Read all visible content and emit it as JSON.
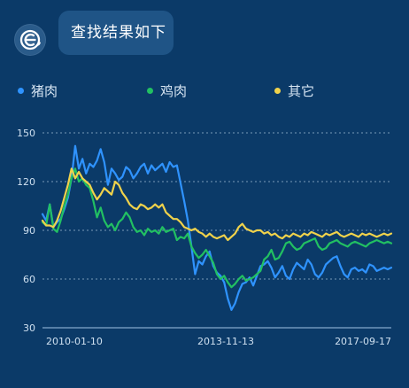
{
  "message": {
    "bubble_text": "查找结果如下",
    "avatar_icon": "bot-headset-icon"
  },
  "legend": [
    {
      "label": "猪肉",
      "color": "#2f93ff"
    },
    {
      "label": "鸡肉",
      "color": "#22c062"
    },
    {
      "label": "其它",
      "color": "#f0d24b"
    }
  ],
  "chart_data": {
    "type": "line",
    "x_tick_labels": [
      "2010-01-10",
      "2013-11-13",
      "2017-09-17"
    ],
    "y_ticks": [
      30,
      60,
      90,
      120,
      150
    ],
    "ylim": [
      30,
      150
    ],
    "grid": "horizontal-dotted",
    "legend_position": "top",
    "x": [
      0,
      1,
      2,
      3,
      4,
      5,
      6,
      7,
      8,
      9,
      10,
      11,
      12,
      13,
      14,
      15,
      16,
      17,
      18,
      19,
      20,
      21,
      22,
      23,
      24,
      25,
      26,
      27,
      28,
      29,
      30,
      31,
      32,
      33,
      34,
      35,
      36,
      37,
      38,
      39,
      40,
      41,
      42,
      43,
      44,
      45,
      46,
      47,
      48,
      49,
      50,
      51,
      52,
      53,
      54,
      55,
      56,
      57,
      58,
      59,
      60,
      61,
      62,
      63,
      64,
      65,
      66,
      67,
      68,
      69,
      70,
      71,
      72,
      73,
      74,
      75,
      76,
      77,
      78,
      79,
      80,
      81,
      82,
      83,
      84,
      85,
      86,
      87,
      88,
      89,
      90,
      91,
      92,
      93,
      94,
      95,
      96
    ],
    "series": [
      {
        "name": "猪肉",
        "color": "#2f93ff",
        "values": [
          100,
          96,
          106,
          92,
          95,
          97,
          103,
          110,
          122,
          142,
          128,
          134,
          125,
          131,
          129,
          133,
          140,
          132,
          118,
          128,
          125,
          121,
          123,
          129,
          127,
          122,
          125,
          129,
          131,
          125,
          130,
          127,
          129,
          131,
          126,
          132,
          129,
          130,
          119,
          108,
          96,
          80,
          63,
          71,
          69,
          74,
          77,
          68,
          64,
          62,
          58,
          48,
          41,
          45,
          52,
          57,
          58,
          61,
          56,
          62,
          68,
          69,
          71,
          67,
          61,
          64,
          68,
          62,
          60,
          66,
          70,
          68,
          66,
          72,
          69,
          63,
          61,
          64,
          69,
          71,
          73,
          74,
          68,
          63,
          61,
          66,
          67,
          65,
          66,
          64,
          69,
          68,
          65,
          66,
          67,
          66,
          67
        ]
      },
      {
        "name": "鸡肉",
        "color": "#22c062",
        "values": [
          95,
          93,
          106,
          91,
          89,
          96,
          105,
          112,
          122,
          128,
          120,
          122,
          118,
          116,
          108,
          98,
          104,
          96,
          92,
          94,
          90,
          95,
          97,
          101,
          98,
          92,
          89,
          90,
          87,
          91,
          89,
          90,
          88,
          92,
          89,
          90,
          91,
          84,
          86,
          85,
          88,
          80,
          76,
          73,
          75,
          78,
          74,
          70,
          63,
          60,
          62,
          58,
          55,
          57,
          60,
          62,
          59,
          60,
          61,
          63,
          65,
          72,
          74,
          78,
          72,
          73,
          77,
          82,
          83,
          80,
          78,
          79,
          82,
          83,
          84,
          85,
          80,
          78,
          79,
          82,
          83,
          84,
          82,
          81,
          80,
          82,
          83,
          82,
          81,
          80,
          82,
          83,
          84,
          83,
          82,
          83,
          82
        ]
      },
      {
        "name": "其它",
        "color": "#f0d24b",
        "values": [
          96,
          93,
          93,
          92,
          96,
          102,
          110,
          118,
          128,
          122,
          126,
          122,
          120,
          118,
          113,
          109,
          112,
          116,
          114,
          112,
          120,
          118,
          113,
          110,
          106,
          104,
          103,
          106,
          105,
          103,
          104,
          106,
          104,
          106,
          101,
          99,
          97,
          97,
          95,
          92,
          91,
          90,
          91,
          89,
          88,
          86,
          88,
          86,
          85,
          86,
          87,
          84,
          86,
          88,
          92,
          94,
          91,
          90,
          89,
          90,
          90,
          88,
          89,
          87,
          88,
          86,
          85,
          87,
          86,
          88,
          87,
          86,
          88,
          87,
          89,
          88,
          87,
          86,
          88,
          87,
          88,
          89,
          87,
          86,
          87,
          88,
          87,
          86,
          88,
          87,
          88,
          87,
          86,
          87,
          88,
          87,
          88
        ]
      }
    ]
  }
}
